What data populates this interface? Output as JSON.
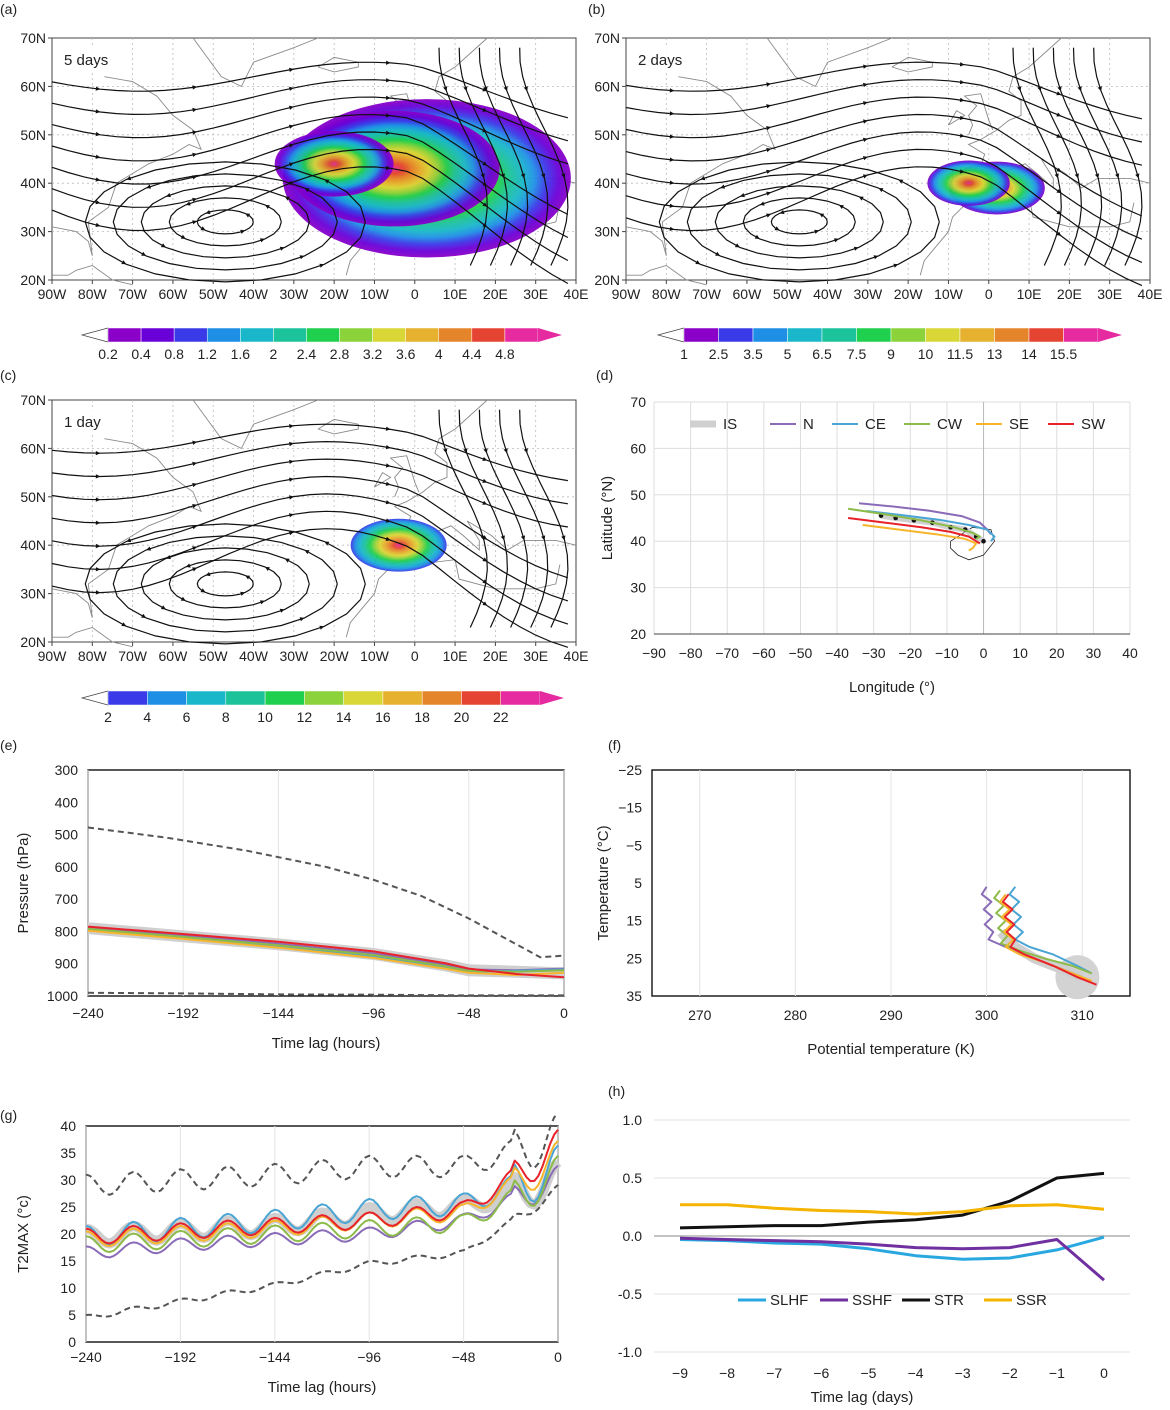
{
  "chart_data": [
    {
      "panel": "(a)",
      "type": "heatmap",
      "title": "5 days",
      "x_ticks": [
        "90W",
        "80W",
        "70W",
        "60W",
        "50W",
        "40W",
        "30W",
        "20W",
        "10W",
        "0",
        "10E",
        "20E",
        "30E",
        "40E"
      ],
      "y_ticks": [
        "70N",
        "60N",
        "50N",
        "40N",
        "30N",
        "20N"
      ],
      "xlim": [
        -90,
        40
      ],
      "ylim": [
        20,
        70
      ],
      "colorbar": [
        "0.2",
        "0.4",
        "0.8",
        "1.2",
        "1.6",
        "2",
        "2.4",
        "2.8",
        "3.2",
        "3.6",
        "4",
        "4.4",
        "4.8"
      ],
      "colors": [
        "#8a00c8",
        "#6a00d8",
        "#3a3ae8",
        "#1f8fe6",
        "#19b7c9",
        "#1cc29a",
        "#1fcf4e",
        "#8bd23b",
        "#d9d637",
        "#e5b12f",
        "#e5852b",
        "#e54433",
        "#e62aa0"
      ],
      "density_centers": [
        {
          "lon": 3,
          "lat": 41,
          "weight": 1.0
        },
        {
          "lon": -5,
          "lat": 43,
          "weight": 0.7
        },
        {
          "lon": -20,
          "lat": 44,
          "weight": 0.35
        }
      ]
    },
    {
      "panel": "(b)",
      "type": "heatmap",
      "title": "2 days",
      "x_ticks": [
        "90W",
        "80W",
        "70W",
        "60W",
        "50W",
        "40W",
        "30W",
        "20W",
        "10W",
        "0",
        "10E",
        "20E",
        "30E",
        "40E"
      ],
      "y_ticks": [
        "70N",
        "60N",
        "50N",
        "40N",
        "30N",
        "20N"
      ],
      "xlim": [
        -90,
        40
      ],
      "ylim": [
        20,
        70
      ],
      "colorbar": [
        "1",
        "2.5",
        "3.5",
        "5",
        "6.5",
        "7.5",
        "9",
        "10",
        "11.5",
        "13",
        "14",
        "15.5"
      ],
      "colors": [
        "#8a00c8",
        "#3a3ae8",
        "#1f8fe6",
        "#19b7c9",
        "#1cc29a",
        "#1fcf4e",
        "#8bd23b",
        "#d9d637",
        "#e5b12f",
        "#e5852b",
        "#e54433",
        "#e62aa0"
      ],
      "density_centers": [
        {
          "lon": 2,
          "lat": 39,
          "weight": 1.0
        },
        {
          "lon": -5,
          "lat": 40,
          "weight": 0.8
        }
      ]
    },
    {
      "panel": "(c)",
      "type": "heatmap",
      "title": "1 day",
      "x_ticks": [
        "90W",
        "80W",
        "70W",
        "60W",
        "50W",
        "40W",
        "30W",
        "20W",
        "10W",
        "0",
        "10E",
        "20E",
        "30E",
        "40E"
      ],
      "y_ticks": [
        "70N",
        "60N",
        "50N",
        "40N",
        "30N",
        "20N"
      ],
      "xlim": [
        -90,
        40
      ],
      "ylim": [
        20,
        70
      ],
      "colorbar": [
        "2",
        "4",
        "6",
        "8",
        "10",
        "12",
        "14",
        "16",
        "18",
        "20",
        "22"
      ],
      "colors": [
        "#3a3ae8",
        "#1f8fe6",
        "#19b7c9",
        "#1cc29a",
        "#1fcf4e",
        "#8bd23b",
        "#d9d637",
        "#e5b12f",
        "#e5852b",
        "#e54433",
        "#e62aa0"
      ],
      "density_centers": [
        {
          "lon": -4,
          "lat": 40,
          "weight": 1.0
        }
      ]
    },
    {
      "panel": "(d)",
      "type": "line",
      "xlabel": "Longitude (°)",
      "ylabel": "Latitude (°N)",
      "xlim": [
        -90,
        40
      ],
      "ylim": [
        20,
        70
      ],
      "x_ticks": [
        -90,
        -80,
        -70,
        -60,
        -50,
        -40,
        -30,
        -20,
        -10,
        0,
        10,
        20,
        30,
        40
      ],
      "y_ticks": [
        20,
        30,
        40,
        50,
        60,
        70
      ],
      "legend": [
        "IS",
        "N",
        "CE",
        "CW",
        "SE",
        "SW"
      ],
      "series": [
        {
          "name": "IS",
          "color": "#d0d0d0",
          "x": [
            -28,
            -24,
            -19,
            -14,
            -9,
            -5,
            -2,
            0
          ],
          "y": [
            45.5,
            45,
            44.5,
            44,
            43,
            42.5,
            41,
            40
          ]
        },
        {
          "name": "N",
          "color": "#8a6bb8",
          "x": [
            -34,
            -25,
            -15,
            -6,
            -1,
            1,
            2
          ],
          "y": [
            48.2,
            47.5,
            46.6,
            45.4,
            44,
            42.5,
            41.5
          ]
        },
        {
          "name": "CE",
          "color": "#4aa5d4",
          "x": [
            -32,
            -22,
            -12,
            -4,
            1,
            3,
            2
          ],
          "y": [
            46.5,
            45.6,
            44.6,
            43.5,
            42.5,
            41,
            40
          ]
        },
        {
          "name": "CW",
          "color": "#8cbb4a",
          "x": [
            -37,
            -27,
            -17,
            -8,
            -3,
            -1,
            -2
          ],
          "y": [
            47,
            45.8,
            44.5,
            43,
            41.8,
            41,
            40.5
          ]
        },
        {
          "name": "SE",
          "color": "#f7b52b",
          "x": [
            -33,
            -23,
            -13,
            -5,
            -2,
            -3,
            -4
          ],
          "y": [
            43.5,
            42.5,
            41.5,
            40.5,
            39.5,
            38.5,
            38
          ]
        },
        {
          "name": "SW",
          "color": "#e8222a",
          "x": [
            -37,
            -27,
            -17,
            -9,
            -4,
            -2,
            -1
          ],
          "y": [
            45,
            44,
            43,
            42,
            41,
            40,
            39.5
          ]
        }
      ]
    },
    {
      "panel": "(e)",
      "type": "line",
      "xlabel": "Time lag (hours)",
      "ylabel": "Pressure (hPa)",
      "xlim": [
        -240,
        0
      ],
      "ylim": [
        300,
        1000
      ],
      "y_inverted": true,
      "x_ticks": [
        -240,
        -192,
        -144,
        -96,
        -48,
        0
      ],
      "y_ticks": [
        300,
        400,
        500,
        600,
        700,
        800,
        900,
        1000
      ],
      "series": [
        {
          "name": "IS",
          "color": "#cfcfcf",
          "x": [
            -240,
            -192,
            -144,
            -96,
            -60,
            -48,
            -24,
            0
          ],
          "y": [
            790,
            815,
            840,
            870,
            905,
            920,
            925,
            930
          ]
        },
        {
          "name": "N",
          "color": "#8a6bb8",
          "x": [
            -240,
            -192,
            -144,
            -96,
            -60,
            -48,
            -24,
            0
          ],
          "y": [
            788,
            812,
            838,
            868,
            903,
            918,
            920,
            915
          ]
        },
        {
          "name": "CE",
          "color": "#4aa5d4",
          "x": [
            -240,
            -192,
            -144,
            -96,
            -60,
            -48,
            -24,
            0
          ],
          "y": [
            795,
            820,
            847,
            878,
            912,
            925,
            922,
            918
          ]
        },
        {
          "name": "CW",
          "color": "#8cbb4a",
          "x": [
            -240,
            -192,
            -144,
            -96,
            -60,
            -48,
            -24,
            0
          ],
          "y": [
            792,
            817,
            843,
            873,
            908,
            922,
            925,
            920
          ]
        },
        {
          "name": "SE",
          "color": "#f7b52b",
          "x": [
            -240,
            -192,
            -144,
            -96,
            -60,
            -48,
            -24,
            0
          ],
          "y": [
            798,
            823,
            850,
            882,
            915,
            928,
            935,
            928
          ]
        },
        {
          "name": "SW",
          "color": "#e8222a",
          "x": [
            -240,
            -192,
            -144,
            -96,
            -60,
            -48,
            -24,
            0
          ],
          "y": [
            785,
            808,
            832,
            862,
            898,
            915,
            932,
            942
          ]
        },
        {
          "name": "upper",
          "color": "#555555",
          "dashed": true,
          "x": [
            -240,
            -200,
            -160,
            -120,
            -96,
            -72,
            -48,
            -24,
            -12,
            0
          ],
          "y": [
            478,
            510,
            550,
            600,
            640,
            690,
            760,
            840,
            880,
            875
          ]
        },
        {
          "name": "lower",
          "color": "#555555",
          "dashed": true,
          "x": [
            -240,
            -192,
            -144,
            -96,
            -48,
            0
          ],
          "y": [
            990,
            992,
            995,
            996,
            998,
            998
          ]
        }
      ]
    },
    {
      "panel": "(f)",
      "type": "line",
      "xlabel": "Potential temperature (K)",
      "ylabel": "Temperature (°C)",
      "xlim": [
        265,
        315
      ],
      "ylim": [
        -25,
        35
      ],
      "y_inverted": true,
      "x_ticks": [
        270,
        280,
        290,
        300,
        310
      ],
      "y_ticks": [
        -25,
        -15,
        -5,
        5,
        15,
        25,
        35
      ],
      "series": [
        {
          "name": "IS",
          "color": "#cfcfcf",
          "x": [
            301.5,
            303,
            305,
            307,
            309,
            310
          ],
          "y": [
            18,
            22,
            25,
            27,
            29,
            30
          ]
        },
        {
          "name": "N",
          "color": "#8a6bb8",
          "x": [
            300,
            299.5,
            300.5,
            299.7,
            300.6,
            299.8,
            300.7,
            300.2,
            302,
            305,
            308,
            310
          ],
          "y": [
            6,
            8,
            10,
            12,
            14,
            16,
            18,
            20,
            22,
            25,
            28,
            30
          ]
        },
        {
          "name": "CE",
          "color": "#4aa5d4",
          "x": [
            303,
            302.4,
            303.4,
            302.6,
            303.6,
            302.8,
            303.8,
            303,
            304.5,
            307,
            309.5,
            311
          ],
          "y": [
            6,
            8,
            10,
            12,
            14,
            16,
            18,
            20,
            22,
            24,
            27,
            29
          ]
        },
        {
          "name": "CW",
          "color": "#8cbb4a",
          "x": [
            301.4,
            300.8,
            301.8,
            301,
            302,
            301.2,
            302.2,
            301.5,
            303.5,
            306,
            309,
            311
          ],
          "y": [
            7,
            9,
            11,
            13,
            15,
            17,
            19,
            21,
            23,
            25,
            27,
            29
          ]
        },
        {
          "name": "SE",
          "color": "#f7b52b",
          "x": [
            302,
            301.4,
            302.4,
            301.6,
            302.6,
            301.8,
            302.8,
            302,
            303.5,
            306,
            309,
            311
          ],
          "y": [
            8,
            10,
            12,
            14,
            16,
            18,
            20,
            22,
            24,
            26,
            29,
            31
          ]
        },
        {
          "name": "SW",
          "color": "#e8222a",
          "x": [
            302.3,
            301.7,
            302.7,
            301.9,
            302.9,
            302.1,
            303,
            302.5,
            304,
            307,
            309.5,
            311.5
          ],
          "y": [
            8,
            10,
            12,
            14,
            16,
            18,
            20,
            22,
            24,
            27,
            30,
            32
          ]
        }
      ]
    },
    {
      "panel": "(g)",
      "type": "line",
      "xlabel": "Time lag (hours)",
      "ylabel": "T2MAX (°c)",
      "xlim": [
        -240,
        0
      ],
      "ylim": [
        0,
        40
      ],
      "x_ticks": [
        -240,
        -192,
        -144,
        -96,
        -48,
        0
      ],
      "y_ticks": [
        0,
        5,
        10,
        15,
        20,
        25,
        30,
        35,
        40
      ],
      "series": [
        {
          "name": "IS",
          "color": "#cfcfcf",
          "base": [
            19.5,
            20.5,
            21.5,
            23.5,
            25,
            30
          ],
          "amp": 1.5
        },
        {
          "name": "N",
          "color": "#8a6bb8",
          "base": [
            16.5,
            18,
            19,
            20,
            22.5,
            30
          ],
          "amp": 1.2
        },
        {
          "name": "CE",
          "color": "#4aa5d4",
          "base": [
            19.5,
            21,
            22.5,
            24.5,
            25.5,
            32
          ],
          "amp": 2.0
        },
        {
          "name": "CW",
          "color": "#8cbb4a",
          "base": [
            18,
            19,
            20,
            21,
            22,
            31
          ],
          "amp": 1.6
        },
        {
          "name": "SE",
          "color": "#f7b52b",
          "base": [
            19,
            20,
            21,
            22.5,
            24,
            34
          ],
          "amp": 1.5
        },
        {
          "name": "SW",
          "color": "#e8222a",
          "base": [
            19.5,
            20.5,
            21.5,
            22.5,
            24.5,
            36
          ],
          "amp": 1.5
        },
        {
          "name": "upper",
          "color": "#555555",
          "dashed": true,
          "base": [
            29,
            30,
            31,
            32.5,
            32.5,
            38
          ],
          "amp": 2.0
        },
        {
          "name": "lower",
          "color": "#555555",
          "dashed": true,
          "base": [
            4.5,
            7.5,
            10.5,
            14.5,
            16.5,
            28
          ],
          "amp": 0.5
        }
      ]
    },
    {
      "panel": "(h)",
      "type": "line",
      "xlabel": "Time lag (days)",
      "xlim": [
        -9,
        0
      ],
      "ylim": [
        -1.0,
        1.0
      ],
      "x_ticks": [
        -9,
        -8,
        -7,
        -6,
        -5,
        -4,
        -3,
        -2,
        -1,
        0
      ],
      "y_ticks": [
        "1.0",
        "0.5",
        "0.0",
        "-0.5",
        "-1.0"
      ],
      "legend": [
        "SLHF",
        "SSHF",
        "STR",
        "SSR"
      ],
      "x": [
        -9,
        -8,
        -7,
        -6,
        -5,
        -4,
        -3,
        -2,
        -1,
        0
      ],
      "series": [
        {
          "name": "SLHF",
          "color": "#29a8e0",
          "values": [
            -0.03,
            -0.04,
            -0.06,
            -0.07,
            -0.11,
            -0.17,
            -0.2,
            -0.19,
            -0.12,
            -0.01
          ]
        },
        {
          "name": "SSHF",
          "color": "#7030a0",
          "values": [
            -0.02,
            -0.03,
            -0.04,
            -0.05,
            -0.07,
            -0.1,
            -0.11,
            -0.1,
            -0.03,
            -0.38
          ]
        },
        {
          "name": "STR",
          "color": "#111111",
          "values": [
            0.07,
            0.08,
            0.09,
            0.09,
            0.12,
            0.14,
            0.18,
            0.3,
            0.5,
            0.54
          ]
        },
        {
          "name": "SSR",
          "color": "#f5b400",
          "values": [
            0.27,
            0.27,
            0.24,
            0.22,
            0.21,
            0.19,
            0.21,
            0.26,
            0.27,
            0.23
          ]
        }
      ]
    }
  ]
}
